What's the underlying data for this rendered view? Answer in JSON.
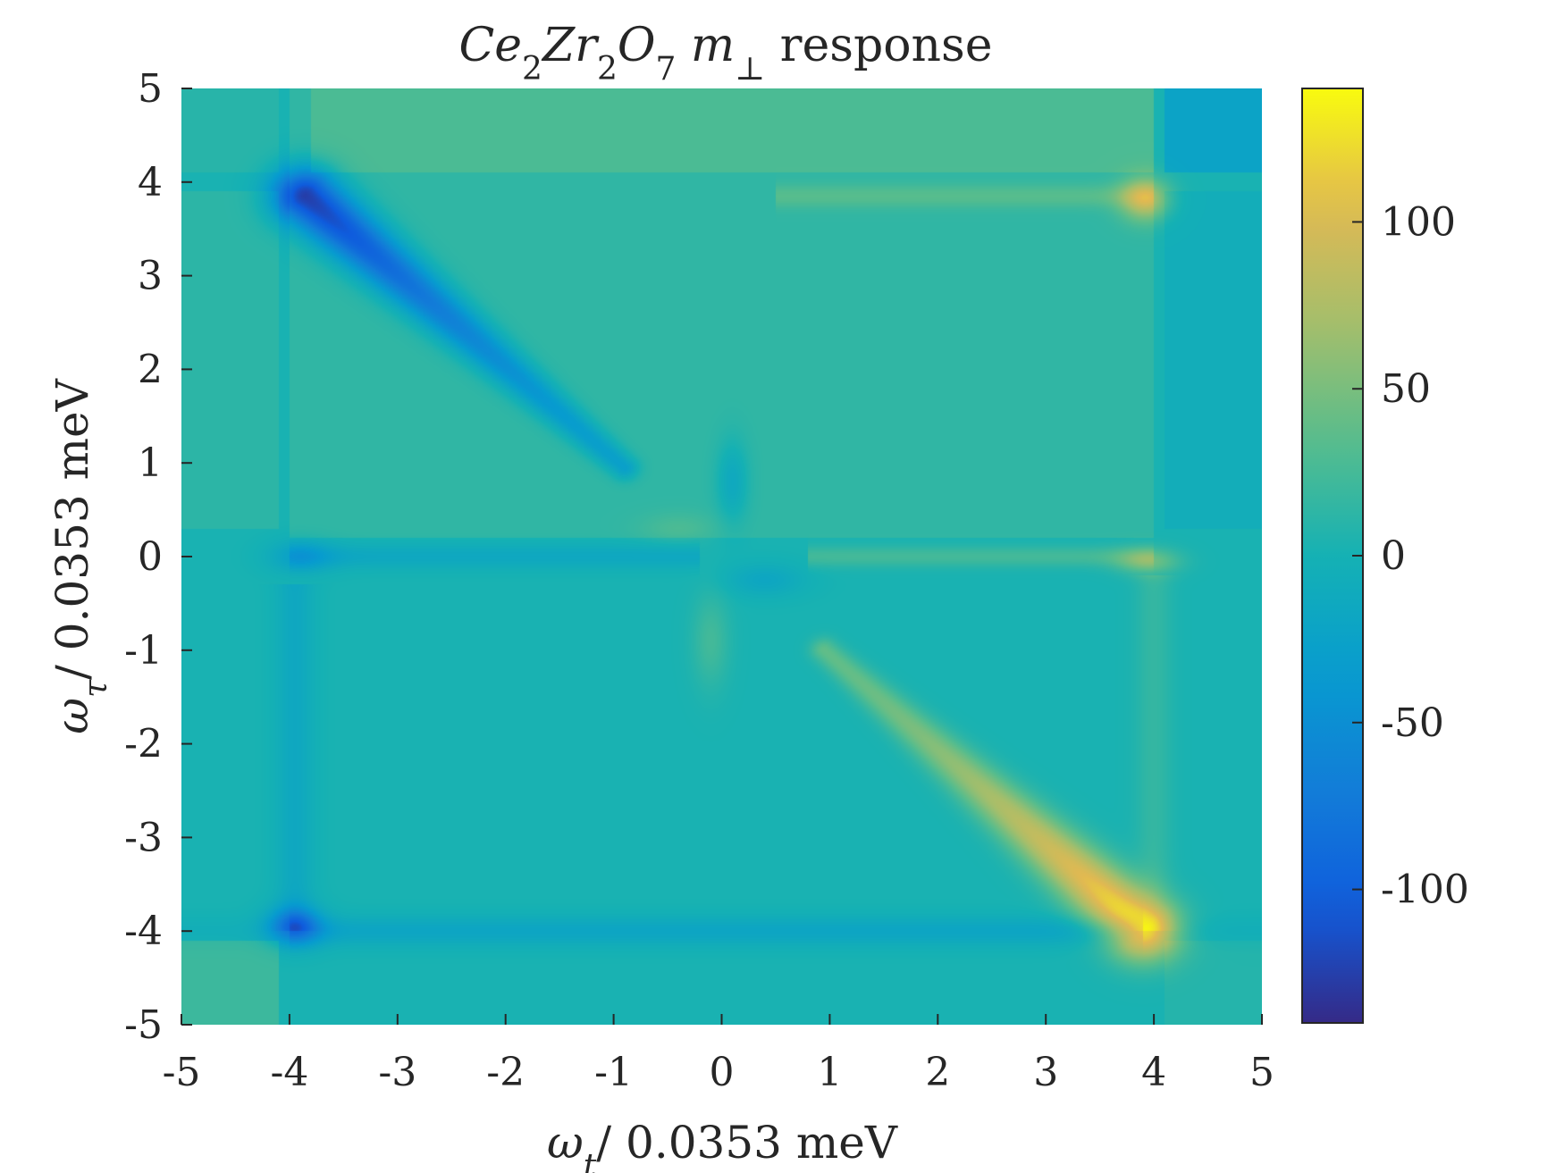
{
  "chart_data": {
    "type": "heatmap",
    "title": {
      "formula_parts": [
        {
          "text": "Ce",
          "style": "italic"
        },
        {
          "text": "2",
          "style": "sub"
        },
        {
          "text": "Zr",
          "style": "italic"
        },
        {
          "text": "2",
          "style": "sub"
        },
        {
          "text": "O",
          "style": "italic"
        },
        {
          "text": "7",
          "style": "sub"
        },
        {
          "text": " m",
          "style": "italic"
        },
        {
          "text": "⊥",
          "style": "sub"
        }
      ],
      "suffix": " response"
    },
    "xlabel": {
      "symbol": "ω",
      "subscript": "t",
      "suffix": "/ 0.0353 meV"
    },
    "ylabel": {
      "symbol": "ω",
      "subscript": "τ",
      "suffix": "/ 0.0353 meV"
    },
    "xlim": [
      -5,
      5
    ],
    "ylim": [
      -5,
      5
    ],
    "xticks": [
      -5,
      -4,
      -3,
      -2,
      -1,
      0,
      1,
      2,
      3,
      4,
      5
    ],
    "yticks": [
      -5,
      -4,
      -3,
      -2,
      -1,
      0,
      1,
      2,
      3,
      4,
      5
    ],
    "colormap": "parula",
    "clim": [
      -140,
      140
    ],
    "colorbar_ticks": [
      -100,
      -50,
      0,
      50,
      100
    ],
    "features": [
      {
        "description": "negative diagonal streak",
        "from": [
          -1,
          1
        ],
        "to": [
          -3.9,
          3.9
        ],
        "peak_value": -140
      },
      {
        "description": "positive diagonal streak",
        "from": [
          1,
          -1
        ],
        "to": [
          3.9,
          -4.0
        ],
        "peak_value": 130
      },
      {
        "description": "negative peak",
        "at": [
          -4,
          -4
        ],
        "peak_value": -80
      },
      {
        "description": "positive peak",
        "at": [
          4,
          4
        ],
        "peak_value": 70
      },
      {
        "description": "positive peak",
        "at": [
          4,
          0
        ],
        "peak_value": 40
      },
      {
        "description": "negative peak",
        "at": [
          -4,
          0
        ],
        "peak_value": -30
      }
    ]
  }
}
